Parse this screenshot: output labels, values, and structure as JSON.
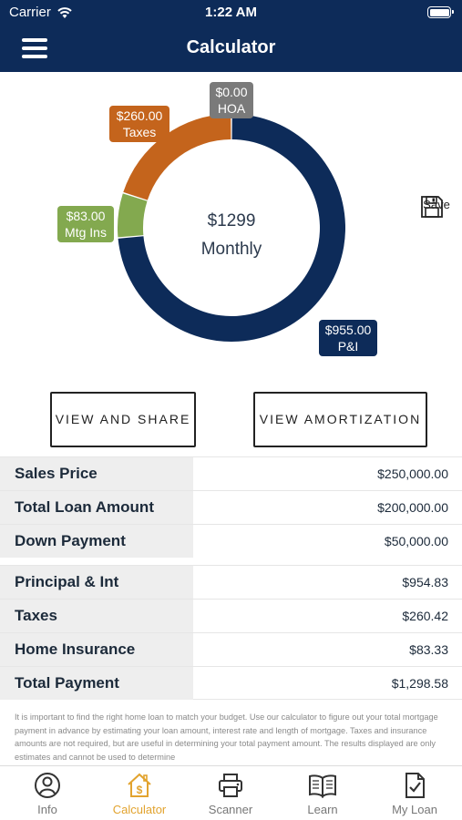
{
  "status_bar": {
    "carrier": "Carrier",
    "time": "1:22 AM"
  },
  "nav": {
    "title": "Calculator",
    "menu_icon": "hamburger-menu-icon"
  },
  "colors": {
    "navy": "#0d2b59",
    "taxes": "#c4641c",
    "insurance": "#83a94f",
    "hoa": "#7a7a7a",
    "active_tab": "#e2a32e"
  },
  "chart_data": {
    "type": "pie",
    "categories": [
      "P&I",
      "Mtg Ins",
      "Taxes",
      "HOA"
    ],
    "values": [
      955.0,
      83.0,
      260.0,
      0.0
    ],
    "value_labels": [
      "$955.00",
      "$83.00",
      "$260.00",
      "$0.00"
    ],
    "colors": [
      "#0d2b59",
      "#83a94f",
      "#c4641c",
      "#7a7a7a"
    ],
    "center_amount": "$1299",
    "center_label": "Monthly"
  },
  "save": {
    "label": "Save",
    "icon": "floppy-disk-icon"
  },
  "buttons": {
    "view_share": "VIEW AND SHARE",
    "view_amortization": "VIEW AMORTIZATION"
  },
  "loan_table": [
    {
      "label": "Sales Price",
      "value": "$250,000.00"
    },
    {
      "label": "Total Loan Amount",
      "value": "$200,000.00"
    },
    {
      "label": "Down Payment",
      "value": "$50,000.00"
    }
  ],
  "payment_table": [
    {
      "label": "Principal & Int",
      "value": "$954.83"
    },
    {
      "label": "Taxes",
      "value": "$260.42"
    },
    {
      "label": "Home Insurance",
      "value": "$83.33"
    },
    {
      "label": "Total Payment",
      "value": "$1,298.58"
    }
  ],
  "disclaimer": "It is important to find the right home loan to match your budget. Use our calculator to figure out your total mortgage payment in advance by estimating your loan amount, interest rate and length of mortgage. Taxes and insurance amounts are not required, but are useful in determining your total payment amount. The results displayed are only estimates and cannot be used to determine",
  "tabs": [
    {
      "label": "Info",
      "icon": "info-person-icon"
    },
    {
      "label": "Calculator",
      "icon": "house-dollar-icon",
      "active": true
    },
    {
      "label": "Scanner",
      "icon": "printer-icon"
    },
    {
      "label": "Learn",
      "icon": "open-book-icon"
    },
    {
      "label": "My Loan",
      "icon": "document-check-icon"
    }
  ]
}
